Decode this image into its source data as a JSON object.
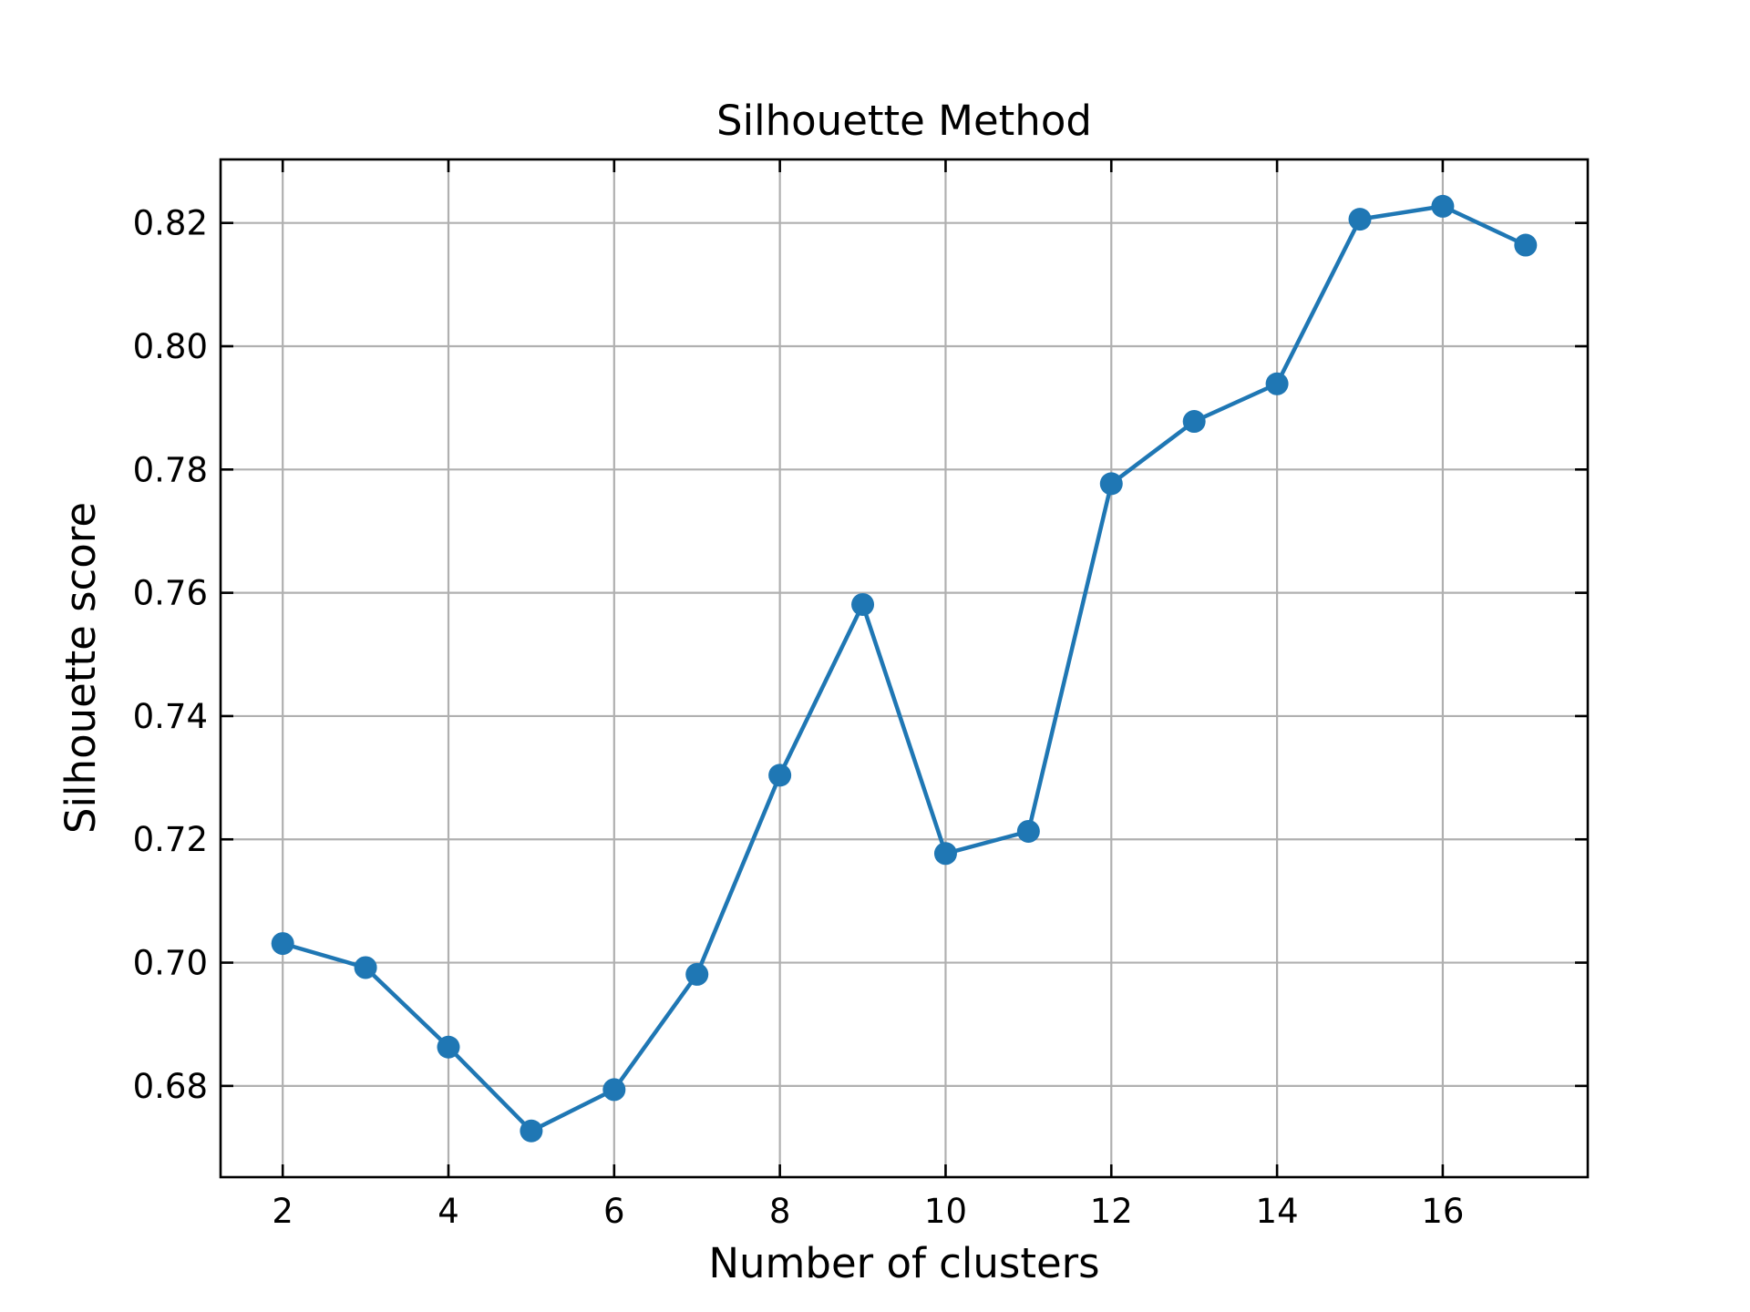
{
  "chart_data": {
    "type": "line",
    "title": "Silhouette Method",
    "xlabel": "Number of clusters",
    "ylabel": "Silhouette score",
    "xlim": [
      1.25,
      17.75
    ],
    "ylim": [
      0.6652,
      0.8303
    ],
    "xticks": [
      "2",
      "4",
      "6",
      "8",
      "10",
      "12",
      "14",
      "16"
    ],
    "yticks": [
      "0.68",
      "0.70",
      "0.72",
      "0.74",
      "0.76",
      "0.78",
      "0.80",
      "0.82"
    ],
    "grid": true,
    "tick_direction": "in",
    "colors": {
      "series": "#1f77b4",
      "grid": "#b0b0b0",
      "axes": "#000000"
    },
    "series": [
      {
        "x": [
          2,
          3,
          4,
          5,
          6,
          7,
          8,
          9,
          10,
          11,
          12,
          13,
          14,
          15,
          16,
          17
        ],
        "y": [
          0.7031,
          0.6992,
          0.6863,
          0.6727,
          0.6794,
          0.6981,
          0.7304,
          0.7581,
          0.7177,
          0.7213,
          0.7777,
          0.7878,
          0.7939,
          0.8206,
          0.8227,
          0.8164
        ]
      }
    ]
  }
}
